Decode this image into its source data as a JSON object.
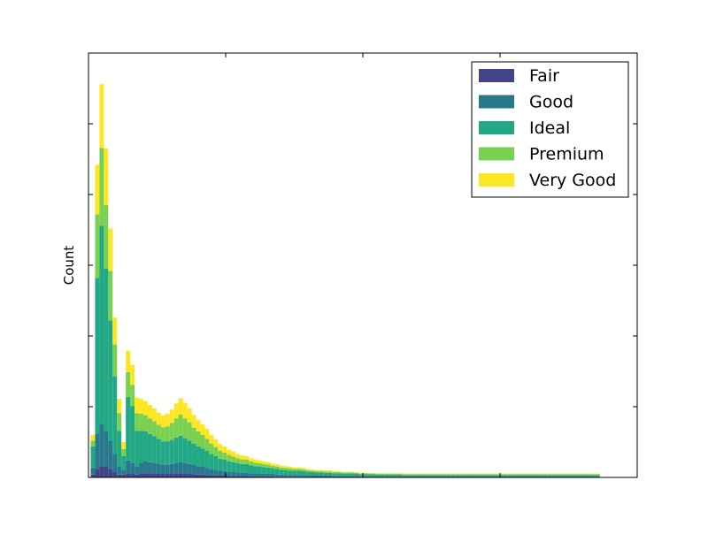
{
  "chart_data": {
    "type": "bar",
    "stacked": true,
    "ylabel": "Count",
    "xlabel": "",
    "title": "",
    "x_tick_labels_visible": false,
    "y_tick_labels_visible": false,
    "grid": false,
    "legend_placement": "top-right",
    "ylim": [
      0,
      6000
    ],
    "xlim": [
      0,
      1000
    ],
    "colors": {
      "Fair": "#414487",
      "Good": "#2a788e",
      "Ideal": "#22a884",
      "Premium": "#7ad151",
      "Very Good": "#fde725"
    },
    "categories": [
      "8",
      "16",
      "24",
      "32",
      "40",
      "48",
      "56",
      "64",
      "72",
      "80",
      "88",
      "96",
      "104",
      "112",
      "120",
      "128",
      "136",
      "144",
      "152",
      "160",
      "168",
      "176",
      "184",
      "192",
      "200",
      "208",
      "216",
      "224",
      "232",
      "240",
      "248",
      "256",
      "264",
      "272",
      "280",
      "288",
      "296",
      "304",
      "312",
      "320",
      "328",
      "336",
      "344",
      "352",
      "360",
      "368",
      "376",
      "384",
      "392",
      "400",
      "408",
      "416",
      "424",
      "432",
      "440",
      "448",
      "456",
      "464",
      "472",
      "480",
      "488",
      "496",
      "504",
      "512",
      "520",
      "528",
      "536",
      "544",
      "552",
      "560",
      "568",
      "576",
      "584",
      "592",
      "600",
      "608",
      "616",
      "624",
      "632",
      "640",
      "648",
      "656",
      "664",
      "672",
      "680",
      "688",
      "696",
      "704",
      "712",
      "720",
      "728",
      "736",
      "744",
      "752",
      "760",
      "768",
      "776",
      "784",
      "792",
      "800",
      "808",
      "816",
      "824",
      "832",
      "840",
      "848",
      "856",
      "864",
      "872",
      "880",
      "888",
      "896",
      "904",
      "912",
      "920",
      "928"
    ],
    "series": [
      {
        "name": "Fair",
        "values": [
          40,
          120,
          160,
          150,
          120,
          80,
          40,
          40,
          60,
          50,
          40,
          60,
          60,
          55,
          55,
          55,
          50,
          50,
          50,
          55,
          60,
          55,
          50,
          45,
          40,
          40,
          35,
          30,
          30,
          25,
          25,
          20,
          20,
          20,
          20,
          20,
          15,
          15,
          15,
          15,
          15,
          15,
          10,
          10,
          10,
          10,
          10,
          10,
          10,
          10,
          5,
          5,
          5,
          5,
          5,
          5,
          5,
          5,
          5,
          5,
          5,
          5,
          5,
          5,
          5,
          5,
          5,
          5,
          5,
          5,
          5,
          5,
          5,
          5,
          5,
          5,
          5,
          5,
          5,
          5,
          5,
          5,
          5,
          5,
          5,
          5,
          5,
          5,
          5,
          5,
          5,
          5,
          5,
          5,
          5,
          5,
          5,
          5,
          5,
          5,
          5,
          5,
          5,
          5,
          5,
          5,
          5,
          5,
          5,
          5,
          5,
          5,
          5,
          5,
          5,
          5
        ]
      },
      {
        "name": "Good",
        "values": [
          100,
          500,
          600,
          500,
          400,
          250,
          120,
          60,
          180,
          160,
          120,
          150,
          170,
          160,
          150,
          140,
          130,
          130,
          140,
          150,
          160,
          150,
          140,
          130,
          120,
          110,
          100,
          90,
          80,
          70,
          65,
          60,
          55,
          50,
          50,
          50,
          45,
          45,
          40,
          40,
          35,
          35,
          30,
          30,
          25,
          25,
          25,
          25,
          25,
          20,
          20,
          20,
          20,
          20,
          20,
          15,
          15,
          15,
          15,
          15,
          15,
          10,
          10,
          10,
          10,
          10,
          10,
          10,
          10,
          10,
          10,
          10,
          10,
          10,
          10,
          10,
          10,
          10,
          10,
          10,
          10,
          10,
          10,
          10,
          10,
          10,
          10,
          10,
          10,
          10,
          10,
          10,
          10,
          10,
          10,
          10,
          10,
          10,
          10,
          10,
          10,
          10,
          10,
          10,
          10,
          10,
          10,
          10,
          10,
          10,
          10,
          10,
          10,
          10,
          10,
          10
        ]
      },
      {
        "name": "Ideal",
        "values": [
          300,
          2200,
          2800,
          2300,
          1700,
          1100,
          500,
          200,
          900,
          800,
          500,
          450,
          420,
          400,
          380,
          350,
          330,
          330,
          340,
          360,
          370,
          350,
          330,
          300,
          280,
          260,
          240,
          210,
          190,
          170,
          160,
          150,
          140,
          130,
          120,
          120,
          110,
          100,
          100,
          90,
          90,
          80,
          80,
          70,
          70,
          60,
          60,
          60,
          55,
          50,
          50,
          45,
          45,
          40,
          40,
          40,
          40,
          35,
          35,
          35,
          30,
          30,
          30,
          30,
          30,
          25,
          25,
          25,
          25,
          25,
          25,
          20,
          20,
          20,
          20,
          20,
          20,
          20,
          20,
          20,
          20,
          20,
          20,
          20,
          20,
          20,
          20,
          20,
          20,
          20,
          20,
          20,
          20,
          20,
          20,
          20,
          20,
          20,
          20,
          20,
          20,
          20,
          20,
          20,
          20,
          20,
          20,
          20,
          20,
          20,
          20,
          20,
          20,
          20,
          20,
          20
        ]
      },
      {
        "name": "Premium",
        "values": [
          80,
          900,
          1100,
          900,
          700,
          450,
          250,
          100,
          350,
          300,
          250,
          240,
          230,
          220,
          210,
          200,
          200,
          210,
          240,
          270,
          300,
          280,
          260,
          230,
          210,
          190,
          170,
          150,
          130,
          110,
          100,
          90,
          80,
          70,
          65,
          60,
          55,
          50,
          45,
          45,
          40,
          35,
          35,
          30,
          30,
          30,
          25,
          25,
          25,
          20,
          20,
          20,
          20,
          20,
          20,
          15,
          15,
          15,
          15,
          15,
          15,
          10,
          10,
          10,
          10,
          10,
          10,
          10,
          10,
          10,
          10,
          10,
          10,
          10,
          10,
          10,
          10,
          10,
          10,
          10,
          10,
          10,
          10,
          10,
          10,
          10,
          10,
          10,
          10,
          10,
          10,
          10,
          10,
          10,
          10,
          10,
          10,
          10,
          10,
          10,
          10,
          10,
          10,
          10,
          10,
          10,
          10,
          10,
          10,
          10,
          10,
          10,
          10,
          10,
          10,
          10
        ]
      },
      {
        "name": "Very Good",
        "values": [
          80,
          700,
          900,
          800,
          600,
          380,
          200,
          100,
          300,
          280,
          220,
          210,
          200,
          190,
          180,
          170,
          170,
          180,
          190,
          210,
          230,
          220,
          200,
          180,
          160,
          150,
          140,
          120,
          110,
          95,
          85,
          75,
          70,
          60,
          55,
          50,
          45,
          45,
          40,
          35,
          35,
          30,
          30,
          25,
          25,
          25,
          20,
          20,
          20,
          20,
          15,
          15,
          15,
          15,
          15,
          15,
          10,
          10,
          10,
          10,
          10,
          10,
          10,
          10,
          10,
          10,
          10,
          10,
          10,
          10,
          10,
          10,
          10,
          10,
          10,
          10,
          10,
          10,
          10,
          10,
          10,
          10,
          10,
          10,
          10,
          10,
          10,
          10,
          10,
          10,
          10,
          10,
          10,
          10,
          10,
          10,
          10,
          10,
          10,
          10,
          10,
          10,
          10,
          10,
          10,
          10,
          10,
          10,
          10,
          10,
          10,
          10,
          10,
          10,
          10,
          10
        ]
      }
    ]
  }
}
